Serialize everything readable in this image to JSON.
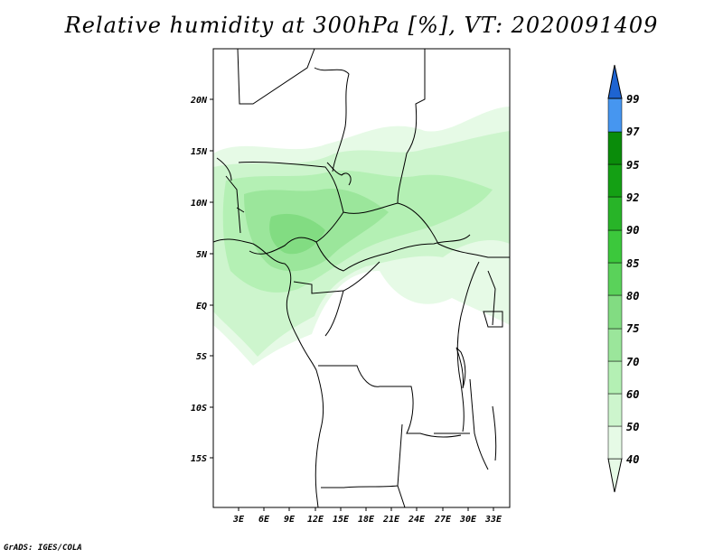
{
  "title": "Relative humidity at 300hPa [%], VT: 2020091409",
  "credit": "GrADS: IGES/COLA",
  "map": {
    "lat_labels": [
      "20N",
      "15N",
      "10N",
      "5N",
      "EQ",
      "5S",
      "10S",
      "15S"
    ],
    "lon_labels": [
      "3E",
      "6E",
      "9E",
      "12E",
      "15E",
      "18E",
      "21E",
      "24E",
      "27E",
      "30E",
      "33E"
    ]
  },
  "colorbar": {
    "levels": [
      "40",
      "50",
      "60",
      "70",
      "75",
      "80",
      "85",
      "90",
      "92",
      "95",
      "97",
      "99"
    ],
    "colors": {
      "c40": "#e6fae6",
      "c50": "#cdf5cd",
      "c60": "#b4f0b4",
      "c70": "#9be69b",
      "c75": "#82dc82",
      "c80": "#5ad25a",
      "c85": "#3cc83c",
      "c90": "#28b428",
      "c92": "#14a014",
      "c95": "#0a8c0a",
      "c97": "#4696f0",
      "c99": "#1e64d2"
    }
  }
}
